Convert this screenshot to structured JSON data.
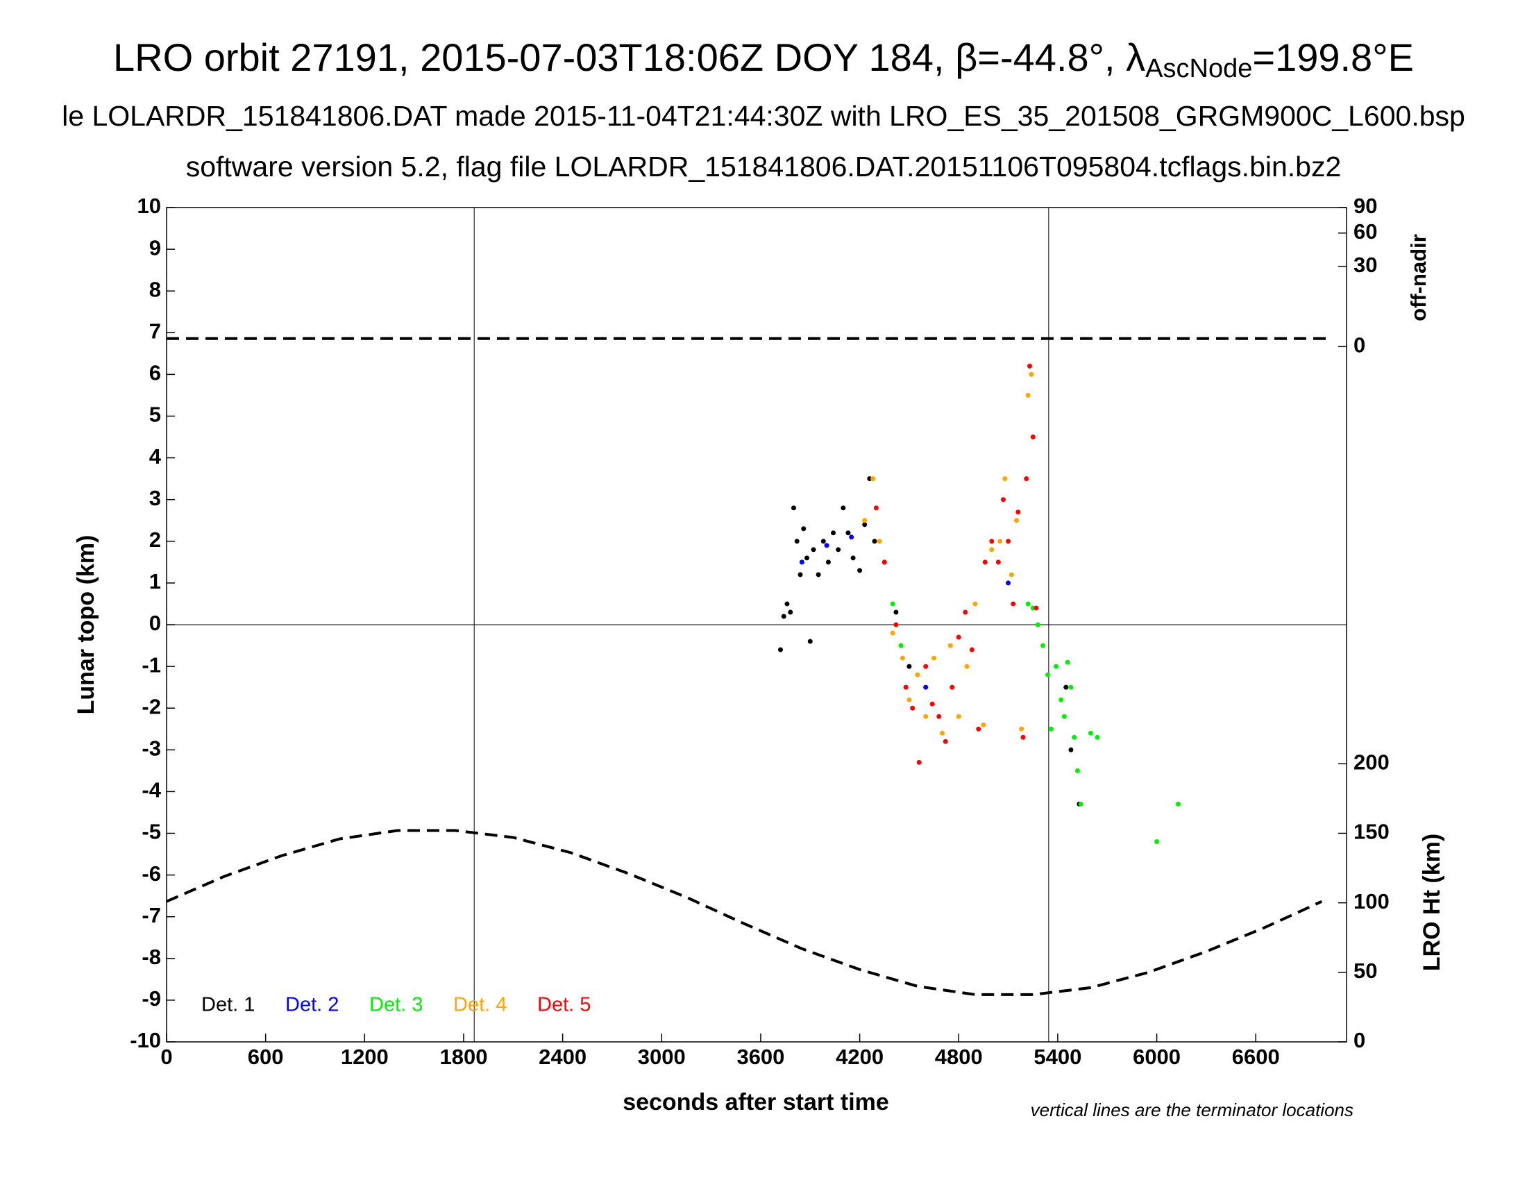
{
  "chart_data": {
    "type": "scatter",
    "title": {
      "main": "LRO orbit 27191, 2015-07-03T18:06Z DOY 184, β=-44.8°, λ",
      "sub": "AscNode",
      "end": "=199.8°E"
    },
    "subtitles": [
      "le LOLARDR_151841806.DAT made 2015-11-04T21:44:30Z with LRO_ES_35_201508_GRGM900C_L600.bsp",
      "software version 5.2, flag file LOLARDR_151841806.DAT.20151106T095804.tcflags.bin.bz2"
    ],
    "xlabel": "seconds after start time",
    "ylabel": "Lunar topo (km)",
    "y2label": "LRO Ht (km)",
    "y3label": "off-nadir",
    "note": "vertical lines are the terminator locations",
    "xlim": [
      0,
      7150
    ],
    "xticks": [
      0,
      600,
      1200,
      1800,
      2400,
      3000,
      3600,
      4200,
      4800,
      5400,
      6000,
      6600
    ],
    "ylim": [
      -10,
      10
    ],
    "yticks": [
      -10,
      -9,
      -8,
      -7,
      -6,
      -5,
      -4,
      -3,
      -2,
      -1,
      0,
      1,
      2,
      3,
      4,
      5,
      6,
      7,
      8,
      9,
      10
    ],
    "y2lim": [
      0,
      600
    ],
    "y2ticks": [
      0,
      50,
      100,
      150,
      200
    ],
    "y3lim": [
      0,
      90
    ],
    "y3scale": "sqrt",
    "y3ticks": [
      0,
      30,
      60,
      90
    ],
    "zero_line": true,
    "terminators": [
      1864,
      5345
    ],
    "legend": "lower left",
    "series": [
      {
        "name": "Det. 1",
        "color": "#000000",
        "x": [
          3720,
          3740,
          3760,
          3780,
          3800,
          3820,
          3840,
          3860,
          3880,
          3900,
          3920,
          3950,
          3980,
          4010,
          4040,
          4070,
          4100,
          4130,
          4160,
          4200,
          4230,
          4260,
          4290,
          4350,
          4420,
          4500,
          5450,
          5480,
          5530
        ],
        "values": [
          -0.6,
          0.2,
          0.5,
          0.3,
          2.8,
          2.0,
          1.2,
          2.3,
          1.6,
          -0.4,
          1.8,
          1.2,
          2.0,
          1.5,
          2.2,
          1.8,
          2.8,
          2.2,
          1.6,
          1.3,
          2.4,
          3.5,
          2.0,
          1.5,
          0.3,
          -1.0,
          -1.5,
          -3.0,
          -4.3
        ]
      },
      {
        "name": "Det. 2",
        "color": "#0000ff",
        "x": [
          3850,
          4000,
          4150,
          4600,
          5100
        ],
        "values": [
          1.5,
          1.9,
          2.1,
          -1.5,
          1.0
        ]
      },
      {
        "name": "Det. 3",
        "color": "#00ee00",
        "x": [
          4400,
          4450,
          5220,
          5250,
          5280,
          5310,
          5340,
          5360,
          5390,
          5420,
          5440,
          5460,
          5480,
          5500,
          5520,
          5540,
          5600,
          5640,
          6000,
          6130
        ],
        "values": [
          0.5,
          -0.5,
          0.5,
          0.4,
          0.0,
          -0.5,
          -1.2,
          -2.5,
          -1.0,
          -1.8,
          -2.2,
          -0.9,
          -1.5,
          -2.7,
          -3.5,
          -4.3,
          -2.6,
          -2.7,
          -5.2,
          -4.3
        ]
      },
      {
        "name": "Det. 4",
        "color": "#ffa500",
        "x": [
          4230,
          4280,
          4320,
          4400,
          4460,
          4500,
          4550,
          4600,
          4650,
          4700,
          4750,
          4800,
          4850,
          4900,
          4950,
          5000,
          5050,
          5080,
          5120,
          5150,
          5180,
          5220,
          5240
        ],
        "values": [
          2.5,
          3.5,
          2.0,
          -0.2,
          -0.8,
          -1.8,
          -1.2,
          -2.2,
          -0.8,
          -2.6,
          -0.5,
          -2.2,
          -1.0,
          0.5,
          -2.4,
          1.8,
          2.0,
          3.5,
          1.2,
          2.5,
          -2.5,
          5.5,
          6.0
        ]
      },
      {
        "name": "Det. 5",
        "color": "#ff0000",
        "x": [
          4300,
          4350,
          4420,
          4480,
          4520,
          4560,
          4600,
          4640,
          4680,
          4720,
          4760,
          4800,
          4840,
          4880,
          4920,
          4960,
          5000,
          5040,
          5070,
          5100,
          5130,
          5160,
          5190,
          5210,
          5230,
          5250,
          5270
        ],
        "values": [
          2.8,
          1.5,
          0.0,
          -1.5,
          -2.0,
          -3.3,
          -1.0,
          -1.9,
          -2.2,
          -2.8,
          -1.5,
          -0.3,
          0.3,
          -0.6,
          -2.5,
          1.5,
          2.0,
          1.5,
          3.0,
          2.0,
          0.5,
          2.7,
          -2.7,
          3.5,
          6.2,
          4.5,
          0.4
        ]
      }
    ],
    "lines": [
      {
        "axis": "y3",
        "color": "#000000",
        "linestyle": "dashed",
        "x": [
          0,
          7044
        ],
        "values": [
          0.3,
          0.3
        ]
      },
      {
        "axis": "y2",
        "color": "#000000",
        "linestyle": "dashed",
        "x": [
          0,
          350,
          700,
          1050,
          1400,
          1750,
          2100,
          2450,
          2800,
          3150,
          3500,
          3850,
          4200,
          4550,
          4900,
          5250,
          5600,
          5950,
          6300,
          6650,
          7000
        ],
        "values": [
          101,
          119,
          134,
          146,
          152,
          152,
          147,
          136,
          121,
          104,
          85,
          67,
          52,
          40,
          34,
          34,
          39,
          50,
          65,
          82,
          101
        ]
      }
    ]
  }
}
